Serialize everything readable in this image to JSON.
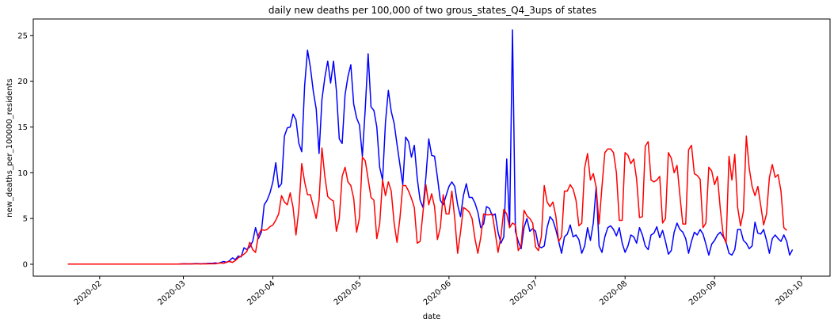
{
  "chart_data": {
    "type": "line",
    "title": "daily new deaths per 100,000 of two grous_states_Q4_3ups of states",
    "xlabel": "date",
    "ylabel": "new_deaths_per_100000_residents",
    "x_start": "2020-01-21",
    "x_end": "2020-09-29",
    "xlim": [
      "2020-01-09",
      "2020-10-11"
    ],
    "ylim": [
      -1.3,
      26.8
    ],
    "grid": false,
    "legend": "none",
    "x_ticks": [
      "2020-02",
      "2020-03",
      "2020-04",
      "2020-05",
      "2020-06",
      "2020-07",
      "2020-08",
      "2020-09",
      "2020-10"
    ],
    "y_ticks": [
      "0",
      "5",
      "10",
      "15",
      "20",
      "25"
    ],
    "y_tick_values": [
      0,
      5,
      10,
      15,
      20,
      25
    ],
    "series": [
      {
        "color": "#0000ff",
        "values": [
          0.02,
          0.02,
          0.02,
          0.02,
          0.02,
          0.02,
          0.02,
          0.02,
          0.02,
          0.02,
          0.02,
          0.02,
          0.02,
          0.02,
          0.02,
          0.02,
          0.02,
          0.02,
          0.02,
          0.02,
          0.02,
          0.02,
          0.02,
          0.02,
          0.02,
          0.02,
          0.02,
          0.02,
          0.02,
          0.02,
          0.02,
          0.02,
          0.02,
          0.02,
          0.02,
          0.02,
          0.02,
          0.02,
          0.02,
          0.03,
          0.05,
          0.05,
          0.03,
          0.05,
          0.07,
          0.07,
          0.05,
          0.07,
          0.08,
          0.1,
          0.1,
          0.15,
          0.1,
          0.2,
          0.3,
          0.2,
          0.4,
          0.7,
          0.5,
          0.9,
          0.8,
          1.8,
          1.6,
          1.9,
          2.5,
          4.0,
          2.8,
          3.5,
          6.5,
          7.0,
          7.8,
          9.0,
          11.1,
          8.4,
          8.8,
          14.0,
          14.9,
          15.0,
          16.4,
          15.8,
          13.2,
          12.3,
          19.5,
          23.4,
          21.5,
          18.9,
          17.0,
          12.1,
          18.0,
          20.4,
          22.2,
          19.8,
          22.2,
          19.0,
          13.7,
          13.2,
          18.5,
          20.5,
          21.8,
          17.5,
          16.0,
          15.2,
          11.8,
          17.0,
          23.0,
          17.2,
          16.8,
          15.0,
          10.6,
          9.2,
          15.5,
          19.0,
          16.7,
          15.4,
          13.1,
          10.9,
          8.7,
          13.9,
          13.4,
          11.7,
          13.0,
          9.4,
          7.0,
          6.2,
          9.5,
          13.7,
          11.9,
          11.8,
          9.5,
          7.0,
          6.5,
          7.5,
          8.5,
          9.0,
          8.5,
          6.5,
          5.2,
          7.5,
          8.8,
          7.3,
          7.3,
          6.7,
          5.7,
          4.0,
          4.4,
          6.3,
          6.1,
          5.3,
          5.5,
          3.5,
          2.3,
          3.0,
          11.5,
          4.0,
          25.6,
          3.6,
          2.5,
          1.7,
          4.0,
          5.0,
          3.6,
          3.9,
          3.6,
          2.0,
          1.8,
          2.0,
          4.0,
          5.2,
          4.8,
          3.8,
          2.5,
          1.2,
          3.0,
          3.3,
          4.3,
          3.0,
          3.2,
          2.7,
          1.2,
          2.0,
          4.0,
          2.6,
          4.5,
          8.5,
          2.0,
          1.3,
          3.0,
          4.0,
          4.2,
          3.8,
          3.1,
          4.0,
          2.3,
          1.3,
          2.0,
          3.2,
          3.0,
          2.3,
          4.0,
          3.2,
          2.0,
          1.6,
          3.2,
          3.4,
          4.1,
          2.9,
          3.7,
          2.5,
          1.1,
          1.5,
          3.5,
          4.5,
          3.8,
          3.5,
          2.8,
          1.2,
          2.5,
          3.5,
          3.2,
          3.8,
          3.3,
          2.2,
          1.0,
          2.2,
          2.6,
          3.2,
          3.5,
          3.0,
          2.4,
          1.2,
          1.0,
          1.6,
          3.8,
          3.8,
          2.6,
          2.3,
          1.7,
          2.0,
          4.6,
          3.4,
          3.3,
          3.8,
          2.6,
          1.2,
          2.8,
          3.2,
          2.8,
          2.5,
          3.2,
          2.5,
          1.0,
          1.6
        ]
      },
      {
        "color": "#ff0000",
        "values": [
          0.02,
          0.02,
          0.02,
          0.02,
          0.02,
          0.02,
          0.02,
          0.02,
          0.02,
          0.02,
          0.02,
          0.02,
          0.02,
          0.02,
          0.02,
          0.02,
          0.02,
          0.02,
          0.02,
          0.02,
          0.02,
          0.02,
          0.02,
          0.02,
          0.02,
          0.02,
          0.02,
          0.02,
          0.02,
          0.02,
          0.02,
          0.02,
          0.02,
          0.02,
          0.02,
          0.02,
          0.02,
          0.02,
          0.02,
          0.04,
          0.03,
          0.03,
          0.05,
          0.03,
          0.04,
          0.04,
          0.03,
          0.05,
          0.04,
          0.05,
          0.06,
          0.05,
          0.1,
          0.15,
          0.1,
          0.25,
          0.3,
          0.2,
          0.4,
          0.7,
          0.9,
          1.1,
          1.4,
          2.4,
          1.6,
          1.3,
          3.2,
          3.8,
          3.7,
          3.8,
          4.1,
          4.3,
          4.8,
          5.5,
          7.5,
          6.8,
          6.5,
          7.8,
          6.2,
          3.2,
          6.0,
          11.0,
          9.0,
          7.6,
          7.6,
          6.3,
          5.0,
          7.0,
          12.7,
          9.6,
          7.4,
          7.1,
          6.9,
          3.6,
          5.0,
          9.6,
          10.6,
          9.0,
          8.6,
          7.2,
          3.5,
          5.1,
          11.7,
          11.3,
          9.3,
          7.3,
          7.0,
          2.8,
          4.4,
          9.2,
          7.5,
          9.0,
          8.0,
          4.5,
          2.4,
          5.0,
          8.6,
          8.6,
          8.0,
          7.2,
          6.2,
          2.3,
          2.5,
          5.7,
          8.7,
          6.5,
          7.7,
          6.3,
          2.7,
          4.0,
          7.6,
          5.5,
          5.5,
          8.0,
          5.0,
          1.2,
          3.5,
          6.2,
          6.0,
          5.7,
          5.0,
          2.8,
          1.2,
          2.9,
          5.5,
          5.4,
          5.4,
          5.5,
          3.5,
          1.3,
          3.0,
          6.0,
          5.5,
          4.0,
          4.5,
          4.3,
          1.5,
          2.0,
          5.9,
          5.3,
          5.0,
          4.5,
          1.9,
          1.5,
          3.0,
          8.6,
          6.8,
          6.3,
          6.8,
          5.3,
          2.5,
          3.0,
          8.0,
          8.0,
          8.7,
          8.2,
          7.0,
          4.2,
          4.5,
          10.5,
          12.1,
          9.2,
          9.9,
          8.4,
          4.4,
          8.5,
          12.2,
          12.6,
          12.6,
          12.2,
          10.0,
          4.8,
          4.8,
          12.2,
          11.9,
          11.0,
          11.5,
          9.3,
          5.1,
          5.2,
          12.9,
          13.4,
          9.2,
          9.0,
          9.2,
          9.6,
          4.5,
          5.0,
          12.2,
          11.6,
          10.0,
          10.8,
          7.5,
          4.4,
          4.4,
          12.5,
          13.0,
          9.9,
          9.7,
          9.3,
          4.0,
          4.5,
          10.6,
          10.2,
          8.7,
          9.6,
          6.0,
          3.2,
          2.3,
          11.8,
          9.2,
          12.0,
          6.2,
          4.2,
          5.8,
          14.0,
          10.5,
          8.5,
          7.5,
          8.5,
          6.4,
          4.3,
          5.5,
          9.5,
          10.9,
          9.5,
          9.8,
          8.0,
          4.0,
          3.7
        ]
      }
    ]
  }
}
